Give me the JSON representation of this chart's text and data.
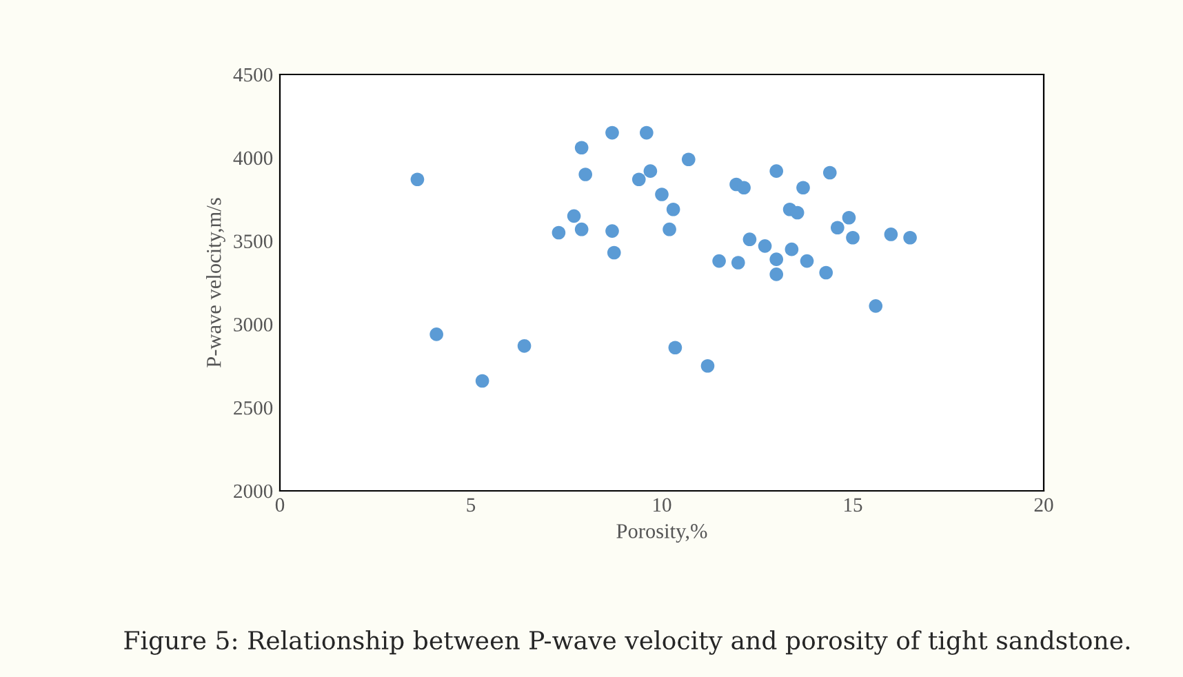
{
  "chart_data": {
    "type": "scatter",
    "xlabel": "Porosity,%",
    "ylabel": "P-wave velocity,m/s",
    "x": [
      3.6,
      4.1,
      5.3,
      6.4,
      7.3,
      7.7,
      7.9,
      8.0,
      7.9,
      8.7,
      8.7,
      8.75,
      9.4,
      9.6,
      9.7,
      10.0,
      10.2,
      10.3,
      10.35,
      10.7,
      11.2,
      11.5,
      12.0,
      11.95,
      12.15,
      12.3,
      12.7,
      13.0,
      13.0,
      13.0,
      13.4,
      13.35,
      13.55,
      13.7,
      13.8,
      14.3,
      14.4,
      14.6,
      14.9,
      15.0,
      15.6,
      16.0,
      16.5
    ],
    "series": [
      {
        "color": "#5b9bd5",
        "values": [
          3870,
          2940,
          2660,
          2870,
          3550,
          3650,
          4060,
          3900,
          3570,
          4150,
          3560,
          3430,
          3870,
          4150,
          3920,
          3780,
          3570,
          3690,
          2860,
          3990,
          2750,
          3380,
          3370,
          3840,
          3820,
          3510,
          3470,
          3920,
          3390,
          3300,
          3450,
          3690,
          3670,
          3820,
          3380,
          3310,
          3910,
          3580,
          3640,
          3520,
          3110,
          3540,
          3520
        ]
      }
    ],
    "xlim": [
      0,
      20
    ],
    "xticks": [
      0,
      5,
      10,
      15,
      20
    ],
    "ylim": [
      2000,
      4500
    ],
    "yticks": [
      2000,
      2500,
      3000,
      3500,
      4000,
      4500
    ],
    "grid": false,
    "legend": false,
    "marker": "circle",
    "annotations": [
      "Figure 5: Relationship between P-wave velocity and porosity of tight sandstone."
    ]
  }
}
